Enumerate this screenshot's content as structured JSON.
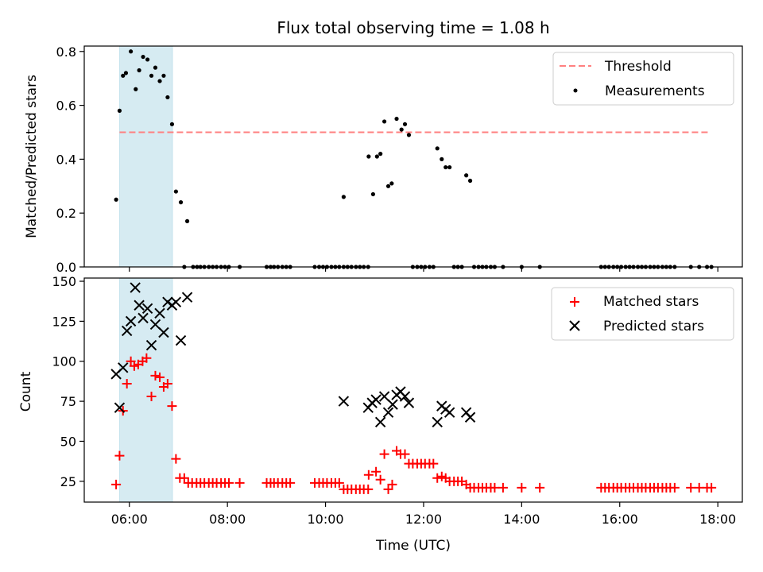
{
  "chart_data": [
    {
      "type": "scatter",
      "title": "Flux total observing time = 1.08 h",
      "ylabel": "Matched/Predicted stars",
      "xlim": [
        5.08,
        18.5
      ],
      "ylim": [
        0,
        0.82
      ],
      "x_ticks": [
        6,
        8,
        10,
        12,
        14,
        16,
        18
      ],
      "x_tick_labels": [
        "06:00",
        "08:00",
        "10:00",
        "12:00",
        "14:00",
        "16:00",
        "18:00"
      ],
      "y_ticks": [
        0,
        0.2,
        0.4,
        0.6,
        0.8
      ],
      "y_tick_labels": [
        "0.0",
        "0.2",
        "0.4",
        "0.6",
        "0.8"
      ],
      "shaded_span": [
        5.8,
        6.88
      ],
      "legend_position": "upper right",
      "threshold": {
        "name": "Threshold",
        "y": 0.5,
        "x": [
          5.8,
          17.8
        ],
        "color": "#ff8080"
      },
      "series": [
        {
          "name": "Measurements",
          "color": "#000000",
          "marker": "dot",
          "points": [
            [
              5.73,
              0.25
            ],
            [
              5.8,
              0.58
            ],
            [
              5.87,
              0.71
            ],
            [
              5.93,
              0.72
            ],
            [
              6.03,
              0.8
            ],
            [
              6.13,
              0.66
            ],
            [
              6.2,
              0.73
            ],
            [
              6.28,
              0.78
            ],
            [
              6.37,
              0.77
            ],
            [
              6.45,
              0.71
            ],
            [
              6.53,
              0.74
            ],
            [
              6.62,
              0.69
            ],
            [
              6.7,
              0.71
            ],
            [
              6.78,
              0.63
            ],
            [
              6.87,
              0.53
            ],
            [
              6.95,
              0.28
            ],
            [
              7.05,
              0.24
            ],
            [
              7.18,
              0.17
            ],
            [
              10.37,
              0.26
            ],
            [
              10.88,
              0.41
            ],
            [
              10.97,
              0.27
            ],
            [
              11.05,
              0.41
            ],
            [
              11.12,
              0.42
            ],
            [
              11.2,
              0.54
            ],
            [
              11.28,
              0.3
            ],
            [
              11.35,
              0.31
            ],
            [
              11.45,
              0.55
            ],
            [
              11.55,
              0.51
            ],
            [
              11.62,
              0.53
            ],
            [
              11.7,
              0.49
            ],
            [
              12.28,
              0.44
            ],
            [
              12.37,
              0.4
            ],
            [
              12.45,
              0.37
            ],
            [
              12.53,
              0.37
            ],
            [
              12.87,
              0.34
            ],
            [
              12.95,
              0.32
            ],
            [
              7.12,
              0
            ],
            [
              7.3,
              0
            ],
            [
              7.38,
              0
            ],
            [
              7.45,
              0
            ],
            [
              7.53,
              0
            ],
            [
              7.62,
              0
            ],
            [
              7.7,
              0
            ],
            [
              7.78,
              0
            ],
            [
              7.87,
              0
            ],
            [
              7.95,
              0
            ],
            [
              8.03,
              0
            ],
            [
              8.25,
              0
            ],
            [
              8.8,
              0
            ],
            [
              8.88,
              0
            ],
            [
              8.95,
              0
            ],
            [
              9.03,
              0
            ],
            [
              9.12,
              0
            ],
            [
              9.2,
              0
            ],
            [
              9.28,
              0
            ],
            [
              9.78,
              0
            ],
            [
              9.87,
              0
            ],
            [
              9.95,
              0
            ],
            [
              10.03,
              0
            ],
            [
              10.12,
              0
            ],
            [
              10.2,
              0
            ],
            [
              10.28,
              0
            ],
            [
              10.37,
              0
            ],
            [
              10.45,
              0
            ],
            [
              10.53,
              0
            ],
            [
              10.62,
              0
            ],
            [
              10.7,
              0
            ],
            [
              10.78,
              0
            ],
            [
              10.87,
              0
            ],
            [
              11.78,
              0
            ],
            [
              11.87,
              0
            ],
            [
              11.95,
              0
            ],
            [
              12.03,
              0
            ],
            [
              12.12,
              0
            ],
            [
              12.2,
              0
            ],
            [
              12.62,
              0
            ],
            [
              12.7,
              0
            ],
            [
              12.78,
              0
            ],
            [
              13.03,
              0
            ],
            [
              13.12,
              0
            ],
            [
              13.2,
              0
            ],
            [
              13.28,
              0
            ],
            [
              13.37,
              0
            ],
            [
              13.45,
              0
            ],
            [
              13.62,
              0
            ],
            [
              14.0,
              0
            ],
            [
              14.37,
              0
            ],
            [
              15.62,
              0
            ],
            [
              15.7,
              0
            ],
            [
              15.78,
              0
            ],
            [
              15.87,
              0
            ],
            [
              15.95,
              0
            ],
            [
              16.03,
              0
            ],
            [
              16.12,
              0
            ],
            [
              16.2,
              0
            ],
            [
              16.28,
              0
            ],
            [
              16.37,
              0
            ],
            [
              16.45,
              0
            ],
            [
              16.53,
              0
            ],
            [
              16.62,
              0
            ],
            [
              16.7,
              0
            ],
            [
              16.78,
              0
            ],
            [
              16.87,
              0
            ],
            [
              16.95,
              0
            ],
            [
              17.03,
              0
            ],
            [
              17.12,
              0
            ],
            [
              17.45,
              0
            ],
            [
              17.62,
              0
            ],
            [
              17.78,
              0
            ],
            [
              17.87,
              0
            ]
          ]
        }
      ]
    },
    {
      "type": "scatter",
      "xlabel": "Time (UTC)",
      "ylabel": "Count",
      "xlim": [
        5.08,
        18.5
      ],
      "ylim": [
        12,
        152
      ],
      "x_ticks": [
        6,
        8,
        10,
        12,
        14,
        16,
        18
      ],
      "x_tick_labels": [
        "06:00",
        "08:00",
        "10:00",
        "12:00",
        "14:00",
        "16:00",
        "18:00"
      ],
      "y_ticks": [
        25,
        50,
        75,
        100,
        125,
        150
      ],
      "y_tick_labels": [
        "25",
        "50",
        "75",
        "100",
        "125",
        "150"
      ],
      "shaded_span": [
        5.8,
        6.88
      ],
      "legend_position": "upper right",
      "series": [
        {
          "name": "Matched stars",
          "color": "#ff0000",
          "marker": "plus",
          "points": [
            [
              5.73,
              23
            ],
            [
              5.8,
              41
            ],
            [
              5.87,
              69
            ],
            [
              5.95,
              86
            ],
            [
              6.03,
              100
            ],
            [
              6.1,
              97
            ],
            [
              6.18,
              98
            ],
            [
              6.27,
              100
            ],
            [
              6.35,
              102
            ],
            [
              6.45,
              78
            ],
            [
              6.53,
              91
            ],
            [
              6.62,
              90
            ],
            [
              6.7,
              84
            ],
            [
              6.78,
              86
            ],
            [
              6.87,
              72
            ],
            [
              6.95,
              39
            ],
            [
              7.03,
              27
            ],
            [
              7.12,
              27
            ],
            [
              7.2,
              24
            ],
            [
              7.28,
              24
            ],
            [
              7.37,
              24
            ],
            [
              7.45,
              24
            ],
            [
              7.53,
              24
            ],
            [
              7.62,
              24
            ],
            [
              7.7,
              24
            ],
            [
              7.78,
              24
            ],
            [
              7.87,
              24
            ],
            [
              7.95,
              24
            ],
            [
              8.03,
              24
            ],
            [
              8.25,
              24
            ],
            [
              8.8,
              24
            ],
            [
              8.88,
              24
            ],
            [
              8.95,
              24
            ],
            [
              9.03,
              24
            ],
            [
              9.12,
              24
            ],
            [
              9.2,
              24
            ],
            [
              9.28,
              24
            ],
            [
              9.78,
              24
            ],
            [
              9.87,
              24
            ],
            [
              9.95,
              24
            ],
            [
              10.03,
              24
            ],
            [
              10.12,
              24
            ],
            [
              10.2,
              24
            ],
            [
              10.28,
              24
            ],
            [
              10.37,
              20
            ],
            [
              10.45,
              20
            ],
            [
              10.53,
              20
            ],
            [
              10.62,
              20
            ],
            [
              10.7,
              20
            ],
            [
              10.78,
              20
            ],
            [
              10.87,
              20
            ],
            [
              10.88,
              29
            ],
            [
              11.03,
              31
            ],
            [
              11.12,
              26
            ],
            [
              11.2,
              42
            ],
            [
              11.28,
              20
            ],
            [
              11.36,
              23
            ],
            [
              11.45,
              44
            ],
            [
              11.53,
              42
            ],
            [
              11.62,
              42
            ],
            [
              11.7,
              36
            ],
            [
              11.78,
              36
            ],
            [
              11.87,
              36
            ],
            [
              11.95,
              36
            ],
            [
              12.03,
              36
            ],
            [
              12.12,
              36
            ],
            [
              12.2,
              36
            ],
            [
              12.28,
              27
            ],
            [
              12.37,
              28
            ],
            [
              12.45,
              27
            ],
            [
              12.53,
              25
            ],
            [
              12.62,
              25
            ],
            [
              12.7,
              25
            ],
            [
              12.78,
              25
            ],
            [
              12.87,
              23
            ],
            [
              12.95,
              21
            ],
            [
              13.03,
              21
            ],
            [
              13.12,
              21
            ],
            [
              13.2,
              21
            ],
            [
              13.28,
              21
            ],
            [
              13.37,
              21
            ],
            [
              13.45,
              21
            ],
            [
              13.62,
              21
            ],
            [
              14.0,
              21
            ],
            [
              14.37,
              21
            ],
            [
              15.62,
              21
            ],
            [
              15.7,
              21
            ],
            [
              15.78,
              21
            ],
            [
              15.87,
              21
            ],
            [
              15.95,
              21
            ],
            [
              16.03,
              21
            ],
            [
              16.12,
              21
            ],
            [
              16.2,
              21
            ],
            [
              16.28,
              21
            ],
            [
              16.37,
              21
            ],
            [
              16.45,
              21
            ],
            [
              16.53,
              21
            ],
            [
              16.62,
              21
            ],
            [
              16.7,
              21
            ],
            [
              16.78,
              21
            ],
            [
              16.87,
              21
            ],
            [
              16.95,
              21
            ],
            [
              17.03,
              21
            ],
            [
              17.12,
              21
            ],
            [
              17.45,
              21
            ],
            [
              17.62,
              21
            ],
            [
              17.78,
              21
            ],
            [
              17.87,
              21
            ]
          ]
        },
        {
          "name": "Predicted stars",
          "color": "#000000",
          "marker": "x",
          "points": [
            [
              5.73,
              92
            ],
            [
              5.8,
              71
            ],
            [
              5.87,
              96
            ],
            [
              5.95,
              119
            ],
            [
              6.03,
              125
            ],
            [
              6.12,
              146
            ],
            [
              6.2,
              135
            ],
            [
              6.28,
              127
            ],
            [
              6.37,
              133
            ],
            [
              6.45,
              110
            ],
            [
              6.53,
              123
            ],
            [
              6.62,
              130
            ],
            [
              6.7,
              118
            ],
            [
              6.78,
              137
            ],
            [
              6.87,
              135
            ],
            [
              6.95,
              137
            ],
            [
              7.05,
              113
            ],
            [
              7.18,
              140
            ],
            [
              10.37,
              75
            ],
            [
              10.87,
              71
            ],
            [
              10.95,
              74
            ],
            [
              11.03,
              76
            ],
            [
              11.12,
              62
            ],
            [
              11.2,
              78
            ],
            [
              11.28,
              68
            ],
            [
              11.37,
              73
            ],
            [
              11.45,
              79
            ],
            [
              11.53,
              81
            ],
            [
              11.62,
              78
            ],
            [
              11.7,
              74
            ],
            [
              12.28,
              62
            ],
            [
              12.37,
              72
            ],
            [
              12.45,
              70
            ],
            [
              12.53,
              68
            ],
            [
              12.87,
              68
            ],
            [
              12.95,
              65
            ]
          ]
        }
      ]
    }
  ]
}
